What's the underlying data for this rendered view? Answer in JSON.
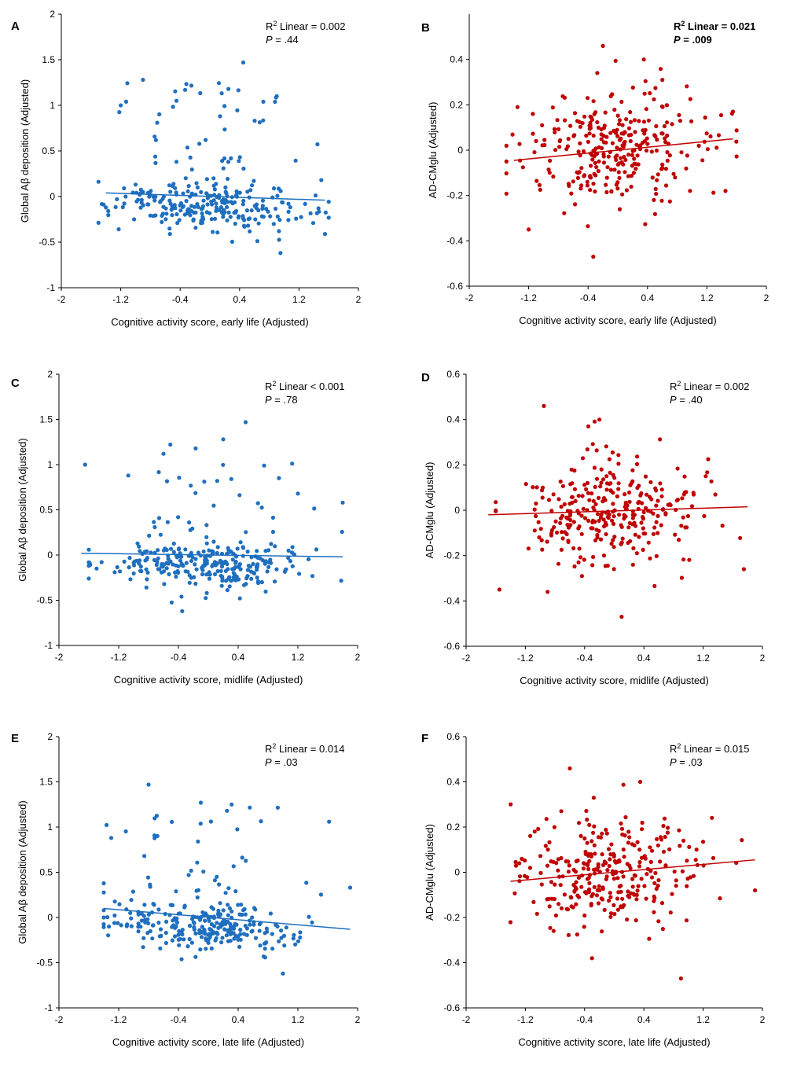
{
  "figure": {
    "panels": [
      {
        "label": "A",
        "stat_r2_prefix": "R",
        "stat_r2_sup": "2",
        "stat_r2_rest": " Linear = 0.002",
        "stat_p_prefix": "P",
        "stat_p_rest": " = .44",
        "stat_bold": false,
        "color": "#1F6FBF",
        "chart_data": {
          "type": "scatter",
          "title": "",
          "xlabel": "Cognitive activity score, early life (Adjusted)",
          "ylabel": "Global Aβ deposition (Adjusted)",
          "xlim": [
            -2,
            2
          ],
          "ylim": [
            -1,
            2
          ],
          "xticks": [
            -2,
            -1.2,
            -0.4,
            0.4,
            1.2,
            2
          ],
          "xtick_labels": [
            "-2",
            "-1.2",
            "-0.4",
            "0.4",
            "1.2",
            "2"
          ],
          "yticks": [
            -1,
            -0.5,
            0,
            0.5,
            1,
            1.5,
            2
          ],
          "ytick_labels": [
            "-1",
            "-0.5",
            "0",
            "0.5",
            "1",
            "1.5",
            "2"
          ],
          "fit_line": {
            "x": [
              -1.4,
              1.55
            ],
            "y": [
              0.04,
              -0.04
            ]
          },
          "seed": 11,
          "n_points": 300,
          "x_center": -0.05,
          "x_sd": 0.6,
          "x_range": [
            -1.5,
            1.6
          ],
          "y_center": -0.1,
          "y_sd": 0.13,
          "y_range": [
            -0.62,
            1.48
          ],
          "outlier_frac": 0.12,
          "outlier_y_range": [
            0.25,
            1.25
          ],
          "points": [
            [
              -1.2,
              1.0
            ],
            [
              -0.9,
              1.28
            ],
            [
              0.45,
              1.47
            ],
            [
              -0.45,
              1.05
            ],
            [
              0.9,
              1.1
            ],
            [
              0.72,
              1.04
            ],
            [
              0.25,
              1.18
            ],
            [
              0.95,
              -0.62
            ],
            [
              1.55,
              -0.41
            ],
            [
              1.5,
              0.18
            ],
            [
              -1.4,
              -0.12
            ]
          ]
        }
      },
      {
        "label": "B",
        "stat_r2_prefix": "R",
        "stat_r2_sup": "2",
        "stat_r2_rest": " Linear = 0.021",
        "stat_p_prefix": "P",
        "stat_p_rest": " = .009",
        "stat_bold": true,
        "color": "#C00000",
        "chart_data": {
          "type": "scatter",
          "title": "",
          "xlabel": "Cognitive activity score, early life (Adjusted)",
          "ylabel": "AD-CMglu (Adjusted)",
          "xlim": [
            -2,
            2
          ],
          "ylim": [
            -0.6,
            0.6
          ],
          "xticks": [
            -2,
            -1.2,
            -0.4,
            0.4,
            1.2,
            2
          ],
          "xtick_labels": [
            "-2",
            "-1.2",
            "-0.4",
            "0.4",
            "1.2",
            "2"
          ],
          "yticks": [
            -0.6,
            -0.4,
            -0.2,
            0,
            0.2,
            0.4
          ],
          "ytick_labels": [
            "-0.6",
            "-0.4",
            "-0.2",
            "0",
            "0.2",
            "0.4"
          ],
          "fit_line": {
            "x": [
              -1.4,
              1.55
            ],
            "y": [
              -0.045,
              0.05
            ]
          },
          "seed": 23,
          "n_points": 300,
          "x_center": -0.05,
          "x_sd": 0.6,
          "x_range": [
            -1.5,
            1.6
          ],
          "y_center": 0.0,
          "y_sd": 0.12,
          "y_range": [
            -0.47,
            0.46
          ],
          "outlier_frac": 0.0,
          "outlier_y_range": [
            0,
            0
          ],
          "points": [
            [
              -0.2,
              0.46
            ],
            [
              -0.33,
              -0.47
            ],
            [
              -1.2,
              -0.35
            ],
            [
              -1.35,
              0.19
            ],
            [
              1.55,
              0.17
            ],
            [
              1.45,
              -0.18
            ],
            [
              0.35,
              0.4
            ],
            [
              0.6,
              0.31
            ]
          ]
        }
      },
      {
        "label": "C",
        "stat_r2_prefix": "R",
        "stat_r2_sup": "2",
        "stat_r2_rest": " Linear < 0.001",
        "stat_p_prefix": "P",
        "stat_p_rest": " = .78",
        "stat_bold": false,
        "color": "#1F6FBF",
        "chart_data": {
          "type": "scatter",
          "title": "",
          "xlabel": "Cognitive activity score, midlife (Adjusted)",
          "ylabel": "Global Aβ deposition (Adjusted)",
          "xlim": [
            -2,
            2
          ],
          "ylim": [
            -1,
            2
          ],
          "xticks": [
            -2,
            -1.2,
            -0.4,
            0.4,
            1.2,
            2
          ],
          "xtick_labels": [
            "-2",
            "-1.2",
            "-0.4",
            "0.4",
            "1.2",
            "2"
          ],
          "yticks": [
            -1,
            -0.5,
            0,
            0.5,
            1,
            1.5,
            2
          ],
          "ytick_labels": [
            "-1",
            "-0.5",
            "0",
            "0.5",
            "1",
            "1.5",
            "2"
          ],
          "fit_line": {
            "x": [
              -1.7,
              1.8
            ],
            "y": [
              0.02,
              -0.02
            ]
          },
          "seed": 37,
          "n_points": 300,
          "x_center": 0.0,
          "x_sd": 0.65,
          "x_range": [
            -1.6,
            1.8
          ],
          "y_center": -0.1,
          "y_sd": 0.13,
          "y_range": [
            -0.62,
            1.48
          ],
          "outlier_frac": 0.12,
          "outlier_y_range": [
            0.25,
            1.25
          ],
          "points": [
            [
              -1.65,
              1.0
            ],
            [
              1.8,
              0.58
            ],
            [
              0.5,
              1.47
            ],
            [
              0.2,
              1.28
            ],
            [
              -0.6,
              1.12
            ],
            [
              -0.35,
              -0.62
            ],
            [
              1.2,
              0.68
            ]
          ]
        }
      },
      {
        "label": "D",
        "stat_r2_prefix": "R",
        "stat_r2_sup": "2",
        "stat_r2_rest": " Linear = 0.002",
        "stat_p_prefix": "P",
        "stat_p_rest": " = .40",
        "stat_bold": false,
        "color": "#C00000",
        "chart_data": {
          "type": "scatter",
          "title": "",
          "xlabel": "Cognitive activity score, midlife (Adjusted)",
          "ylabel": "AD-CMglu (Adjusted)",
          "xlim": [
            -2,
            2
          ],
          "ylim": [
            -0.6,
            0.6
          ],
          "xticks": [
            -2,
            -1.2,
            -0.4,
            0.4,
            1.2,
            2
          ],
          "xtick_labels": [
            "-2",
            "-1.2",
            "-0.4",
            "0.4",
            "1.2",
            "2"
          ],
          "yticks": [
            -0.6,
            -0.4,
            -0.2,
            0,
            0.2,
            0.4,
            0.6
          ],
          "ytick_labels": [
            "-0.6",
            "-0.4",
            "-0.2",
            "0",
            "0.2",
            "0.4",
            "0.6"
          ],
          "fit_line": {
            "x": [
              -1.7,
              1.8
            ],
            "y": [
              -0.02,
              0.015
            ]
          },
          "seed": 41,
          "n_points": 300,
          "x_center": 0.0,
          "x_sd": 0.62,
          "x_range": [
            -1.6,
            1.7
          ],
          "y_center": 0.0,
          "y_sd": 0.12,
          "y_range": [
            -0.47,
            0.46
          ],
          "outlier_frac": 0.0,
          "outlier_y_range": [
            0,
            0
          ],
          "points": [
            [
              -1.55,
              -0.35
            ],
            [
              1.75,
              -0.26
            ],
            [
              -0.95,
              0.46
            ],
            [
              0.1,
              -0.47
            ],
            [
              -0.35,
              0.37
            ],
            [
              -0.2,
              0.4
            ],
            [
              -0.9,
              -0.36
            ]
          ]
        }
      },
      {
        "label": "E",
        "stat_r2_prefix": "R",
        "stat_r2_sup": "2",
        "stat_r2_rest": " Linear = 0.014",
        "stat_p_prefix": "P",
        "stat_p_rest": " = .03",
        "stat_bold": false,
        "color": "#1F6FBF",
        "chart_data": {
          "type": "scatter",
          "title": "",
          "xlabel": "Cognitive activity score, late life (Adjusted)",
          "ylabel": "Global Aβ deposition (Adjusted)",
          "xlim": [
            -2,
            2
          ],
          "ylim": [
            -1,
            2
          ],
          "xticks": [
            -2,
            -1.2,
            -0.4,
            0.4,
            1.2,
            2
          ],
          "xtick_labels": [
            "-2",
            "-1.2",
            "-0.4",
            "0.4",
            "1.2",
            "2"
          ],
          "yticks": [
            -1,
            -0.5,
            0,
            0.5,
            1,
            1.5,
            2
          ],
          "ytick_labels": [
            "-1",
            "-0.5",
            "0",
            "0.5",
            "1",
            "1.5",
            "2"
          ],
          "fit_line": {
            "x": [
              -1.4,
              1.9
            ],
            "y": [
              0.1,
              -0.13
            ]
          },
          "seed": 53,
          "n_points": 300,
          "x_center": -0.05,
          "x_sd": 0.6,
          "x_range": [
            -1.4,
            1.9
          ],
          "y_center": -0.1,
          "y_sd": 0.13,
          "y_range": [
            -0.62,
            1.48
          ],
          "outlier_frac": 0.12,
          "outlier_y_range": [
            0.25,
            1.25
          ],
          "points": [
            [
              -0.8,
              1.47
            ],
            [
              -1.3,
              0.88
            ],
            [
              1.9,
              0.33
            ],
            [
              1.0,
              -0.62
            ],
            [
              -0.1,
              1.27
            ],
            [
              0.25,
              1.18
            ]
          ]
        }
      },
      {
        "label": "F",
        "stat_r2_prefix": "R",
        "stat_r2_sup": "2",
        "stat_r2_rest": " Linear = 0.015",
        "stat_p_prefix": "P",
        "stat_p_rest": " = .03",
        "stat_bold": false,
        "color": "#C00000",
        "chart_data": {
          "type": "scatter",
          "title": "",
          "xlabel": "Cognitive activity score, late life (Adjusted)",
          "ylabel": "AD-CMglu (Adjusted)",
          "xlim": [
            -2,
            2
          ],
          "ylim": [
            -0.6,
            0.6
          ],
          "xticks": [
            -2,
            -1.2,
            -0.4,
            0.4,
            1.2,
            2
          ],
          "xtick_labels": [
            "-2",
            "-1.2",
            "-0.4",
            "0.4",
            "1.2",
            "2"
          ],
          "yticks": [
            -0.6,
            -0.4,
            -0.2,
            0,
            0.2,
            0.4,
            0.6
          ],
          "ytick_labels": [
            "-0.6",
            "-0.4",
            "-0.2",
            "0",
            "0.2",
            "0.4",
            "0.6"
          ],
          "fit_line": {
            "x": [
              -1.4,
              1.9
            ],
            "y": [
              -0.04,
              0.055
            ]
          },
          "seed": 67,
          "n_points": 300,
          "x_center": -0.05,
          "x_sd": 0.6,
          "x_range": [
            -1.4,
            1.9
          ],
          "y_center": 0.0,
          "y_sd": 0.12,
          "y_range": [
            -0.47,
            0.46
          ],
          "outlier_frac": 0.0,
          "outlier_y_range": [
            0,
            0
          ],
          "points": [
            [
              -0.6,
              0.46
            ],
            [
              0.9,
              -0.47
            ],
            [
              1.9,
              -0.08
            ],
            [
              -0.3,
              -0.38
            ],
            [
              0.35,
              0.4
            ]
          ]
        }
      }
    ]
  }
}
